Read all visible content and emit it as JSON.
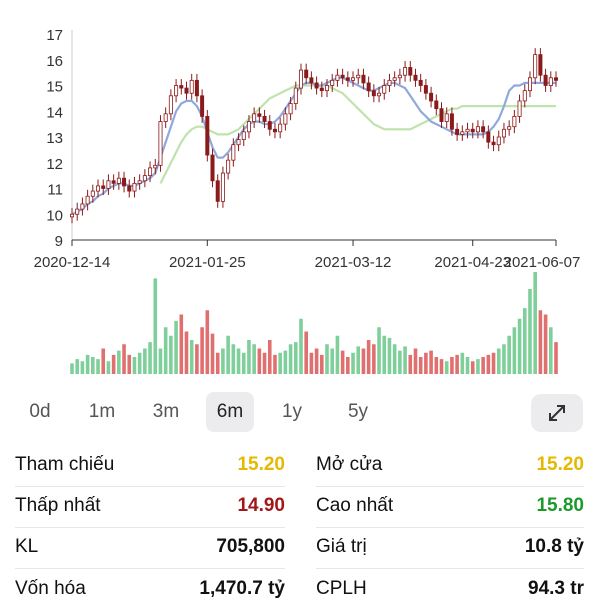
{
  "colors": {
    "up": "#7fcf9b",
    "down": "#e07070",
    "candle": "#8b1a1a",
    "ma_short": "#8fa9e0",
    "ma_long": "#bfe3ad",
    "reference": "#e6b800",
    "low": "#a01818",
    "high": "#1a9a2a",
    "neutral": "#111111"
  },
  "chart_data": {
    "type": "line",
    "y_ticks": [
      "9",
      "10",
      "11",
      "12",
      "13",
      "14",
      "15",
      "16",
      "17"
    ],
    "ylim": [
      9,
      17
    ],
    "x_ticks": [
      "2020-12-14",
      "2021-01-25",
      "2021-03-12",
      "2021-04-23",
      "2021-06-07"
    ],
    "close": [
      10.0,
      10.2,
      10.4,
      10.7,
      10.9,
      11.1,
      11.0,
      11.3,
      11.2,
      11.4,
      11.1,
      10.9,
      11.2,
      11.3,
      11.5,
      11.8,
      11.9,
      13.6,
      13.9,
      14.6,
      15.0,
      14.9,
      14.7,
      15.2,
      14.6,
      13.8,
      12.3,
      11.3,
      10.5,
      11.6,
      12.1,
      12.7,
      12.9,
      13.2,
      13.6,
      13.9,
      13.8,
      13.6,
      13.3,
      13.2,
      13.5,
      13.9,
      14.3,
      14.9,
      15.6,
      15.3,
      15.1,
      14.9,
      14.8,
      15.0,
      15.2,
      15.4,
      15.3,
      15.2,
      15.3,
      15.4,
      15.1,
      14.8,
      14.6,
      14.7,
      15.0,
      15.2,
      15.3,
      15.4,
      15.7,
      15.4,
      15.2,
      15.0,
      14.7,
      14.4,
      14.1,
      13.6,
      13.9,
      13.3,
      13.1,
      13.2,
      13.3,
      13.2,
      13.4,
      13.2,
      12.8,
      12.7,
      13.0,
      13.3,
      13.4,
      13.8,
      14.4,
      14.8,
      15.3,
      16.2,
      15.4,
      15.0,
      15.3,
      15.2
    ],
    "ma_short": [
      10.0,
      10.1,
      10.2,
      10.4,
      10.5,
      10.7,
      10.8,
      11.0,
      11.1,
      11.2,
      11.2,
      11.1,
      11.1,
      11.2,
      11.3,
      11.4,
      11.6,
      12.2,
      12.8,
      13.4,
      14.0,
      14.3,
      14.4,
      14.4,
      14.2,
      13.8,
      13.2,
      12.6,
      12.2,
      12.2,
      12.4,
      12.7,
      13.0,
      13.3,
      13.5,
      13.6,
      13.6,
      13.5,
      13.5,
      13.6,
      13.8,
      14.1,
      14.4,
      14.7,
      15.0,
      15.1,
      15.1,
      15.0,
      15.0,
      15.1,
      15.2,
      15.3,
      15.3,
      15.2,
      15.1,
      15.0,
      14.9,
      14.8,
      14.8,
      14.9,
      15.0,
      15.1,
      15.1,
      15.0,
      14.9,
      14.6,
      14.3,
      14.0,
      13.8,
      13.6,
      13.5,
      13.4,
      13.3,
      13.2,
      13.1,
      13.1,
      13.1,
      13.1,
      13.1,
      13.1,
      13.2,
      13.4,
      13.7,
      14.2,
      14.8,
      15.0,
      15.0,
      15.1,
      15.1,
      15.1,
      15.1,
      15.1,
      15.1,
      15.1
    ],
    "ma_long": [
      null,
      null,
      null,
      null,
      null,
      null,
      null,
      null,
      null,
      null,
      null,
      null,
      null,
      null,
      null,
      null,
      null,
      11.2,
      11.6,
      12.0,
      12.4,
      12.8,
      13.1,
      13.3,
      13.4,
      13.4,
      13.3,
      13.2,
      13.1,
      13.1,
      13.1,
      13.2,
      13.3,
      13.5,
      13.7,
      13.9,
      14.1,
      14.3,
      14.5,
      14.6,
      14.7,
      14.8,
      14.9,
      15.0,
      15.0,
      15.0,
      15.0,
      15.0,
      15.0,
      15.0,
      14.9,
      14.8,
      14.7,
      14.5,
      14.3,
      14.1,
      13.9,
      13.7,
      13.5,
      13.4,
      13.3,
      13.3,
      13.3,
      13.3,
      13.3,
      13.3,
      13.4,
      13.5,
      13.6,
      13.7,
      13.8,
      13.9,
      14.0,
      14.1,
      14.1,
      14.2,
      14.2,
      14.2,
      14.2,
      14.2,
      14.2,
      14.2,
      14.2,
      14.2,
      14.2,
      14.2,
      14.2,
      14.2,
      14.2,
      14.2,
      14.2,
      14.2,
      14.2,
      14.2
    ],
    "volume": [
      5,
      7,
      6,
      9,
      8,
      7,
      12,
      6,
      9,
      11,
      14,
      9,
      8,
      10,
      12,
      15,
      45,
      12,
      22,
      18,
      25,
      28,
      20,
      16,
      14,
      22,
      30,
      19,
      10,
      12,
      18,
      14,
      12,
      10,
      16,
      14,
      12,
      10,
      16,
      9,
      10,
      11,
      14,
      15,
      26,
      20,
      10,
      12,
      9,
      14,
      12,
      18,
      11,
      8,
      10,
      13,
      12,
      16,
      14,
      22,
      18,
      17,
      14,
      11,
      13,
      9,
      12,
      8,
      10,
      11,
      8,
      7,
      6,
      8,
      9,
      10,
      8,
      6,
      7,
      8,
      9,
      10,
      12,
      14,
      18,
      22,
      26,
      31,
      40,
      48,
      30,
      28,
      22,
      15
    ]
  },
  "ranges": [
    "0d",
    "1m",
    "3m",
    "6m",
    "1y",
    "5y"
  ],
  "active_range": "6m",
  "stats": {
    "ref_label": "Tham chiếu",
    "ref_value": "15.20",
    "open_label": "Mở cửa",
    "open_value": "15.20",
    "low_label": "Thấp nhất",
    "low_value": "14.90",
    "high_label": "Cao nhất",
    "high_value": "15.80",
    "vol_label": "KL",
    "vol_value": "705,800",
    "val_label": "Giá trị",
    "val_value": "10.8 tỷ",
    "cap_label": "Vốn hóa",
    "cap_value": "1,470.7 tỷ",
    "shares_label": "CPLH",
    "shares_value": "94.3 tr"
  }
}
